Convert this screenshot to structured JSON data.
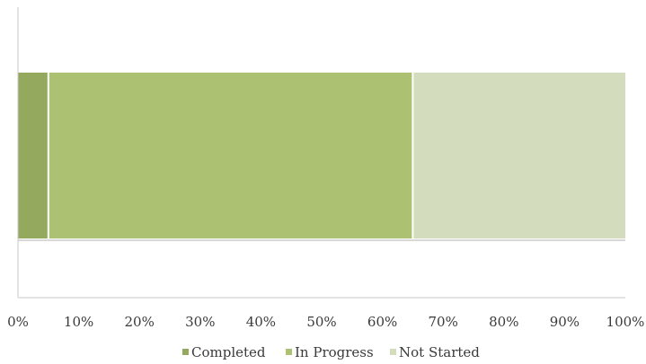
{
  "chart_data": {
    "type": "bar",
    "orientation": "horizontal",
    "stacked": "100%",
    "categories": [
      ""
    ],
    "series": [
      {
        "name": "Completed",
        "values": [
          5
        ],
        "color": "#94a85e"
      },
      {
        "name": "In Progress",
        "values": [
          60
        ],
        "color": "#adc172"
      },
      {
        "name": "Not Started",
        "values": [
          35
        ],
        "color": "#d3dcbc"
      }
    ],
    "x_ticks": [
      "0%",
      "10%",
      "20%",
      "30%",
      "40%",
      "50%",
      "60%",
      "70%",
      "80%",
      "90%",
      "100%"
    ],
    "xlim": [
      0,
      100
    ],
    "grid": false,
    "legend": {
      "position": "bottom",
      "entries": [
        "Completed",
        "In Progress",
        "Not Started"
      ]
    },
    "axis_color": "#c8c8c8",
    "title": "",
    "xlabel": "",
    "ylabel": ""
  }
}
